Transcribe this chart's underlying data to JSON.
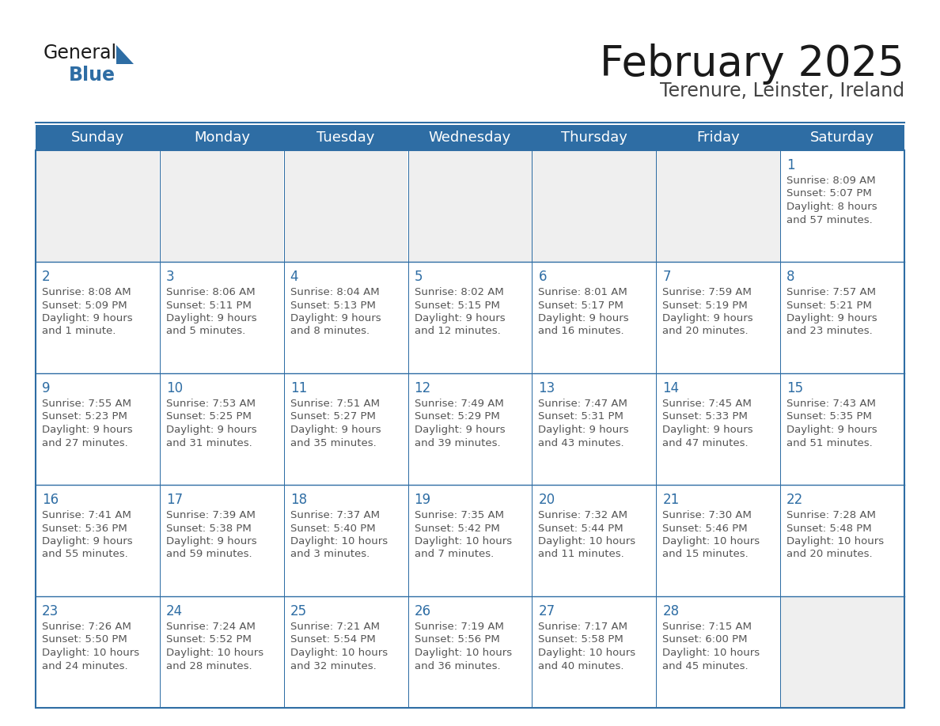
{
  "title": "February 2025",
  "subtitle": "Terenure, Leinster, Ireland",
  "header_color": "#2E6DA4",
  "header_text_color": "#FFFFFF",
  "cell_bg_color": "#FFFFFF",
  "empty_cell_bg": "#EFEFEF",
  "grid_line_color": "#2E6DA4",
  "day_number_color": "#2E6DA4",
  "cell_text_color": "#555555",
  "days_of_week": [
    "Sunday",
    "Monday",
    "Tuesday",
    "Wednesday",
    "Thursday",
    "Friday",
    "Saturday"
  ],
  "weeks": [
    [
      {
        "day": "",
        "info": ""
      },
      {
        "day": "",
        "info": ""
      },
      {
        "day": "",
        "info": ""
      },
      {
        "day": "",
        "info": ""
      },
      {
        "day": "",
        "info": ""
      },
      {
        "day": "",
        "info": ""
      },
      {
        "day": "1",
        "info": "Sunrise: 8:09 AM\nSunset: 5:07 PM\nDaylight: 8 hours\nand 57 minutes."
      }
    ],
    [
      {
        "day": "2",
        "info": "Sunrise: 8:08 AM\nSunset: 5:09 PM\nDaylight: 9 hours\nand 1 minute."
      },
      {
        "day": "3",
        "info": "Sunrise: 8:06 AM\nSunset: 5:11 PM\nDaylight: 9 hours\nand 5 minutes."
      },
      {
        "day": "4",
        "info": "Sunrise: 8:04 AM\nSunset: 5:13 PM\nDaylight: 9 hours\nand 8 minutes."
      },
      {
        "day": "5",
        "info": "Sunrise: 8:02 AM\nSunset: 5:15 PM\nDaylight: 9 hours\nand 12 minutes."
      },
      {
        "day": "6",
        "info": "Sunrise: 8:01 AM\nSunset: 5:17 PM\nDaylight: 9 hours\nand 16 minutes."
      },
      {
        "day": "7",
        "info": "Sunrise: 7:59 AM\nSunset: 5:19 PM\nDaylight: 9 hours\nand 20 minutes."
      },
      {
        "day": "8",
        "info": "Sunrise: 7:57 AM\nSunset: 5:21 PM\nDaylight: 9 hours\nand 23 minutes."
      }
    ],
    [
      {
        "day": "9",
        "info": "Sunrise: 7:55 AM\nSunset: 5:23 PM\nDaylight: 9 hours\nand 27 minutes."
      },
      {
        "day": "10",
        "info": "Sunrise: 7:53 AM\nSunset: 5:25 PM\nDaylight: 9 hours\nand 31 minutes."
      },
      {
        "day": "11",
        "info": "Sunrise: 7:51 AM\nSunset: 5:27 PM\nDaylight: 9 hours\nand 35 minutes."
      },
      {
        "day": "12",
        "info": "Sunrise: 7:49 AM\nSunset: 5:29 PM\nDaylight: 9 hours\nand 39 minutes."
      },
      {
        "day": "13",
        "info": "Sunrise: 7:47 AM\nSunset: 5:31 PM\nDaylight: 9 hours\nand 43 minutes."
      },
      {
        "day": "14",
        "info": "Sunrise: 7:45 AM\nSunset: 5:33 PM\nDaylight: 9 hours\nand 47 minutes."
      },
      {
        "day": "15",
        "info": "Sunrise: 7:43 AM\nSunset: 5:35 PM\nDaylight: 9 hours\nand 51 minutes."
      }
    ],
    [
      {
        "day": "16",
        "info": "Sunrise: 7:41 AM\nSunset: 5:36 PM\nDaylight: 9 hours\nand 55 minutes."
      },
      {
        "day": "17",
        "info": "Sunrise: 7:39 AM\nSunset: 5:38 PM\nDaylight: 9 hours\nand 59 minutes."
      },
      {
        "day": "18",
        "info": "Sunrise: 7:37 AM\nSunset: 5:40 PM\nDaylight: 10 hours\nand 3 minutes."
      },
      {
        "day": "19",
        "info": "Sunrise: 7:35 AM\nSunset: 5:42 PM\nDaylight: 10 hours\nand 7 minutes."
      },
      {
        "day": "20",
        "info": "Sunrise: 7:32 AM\nSunset: 5:44 PM\nDaylight: 10 hours\nand 11 minutes."
      },
      {
        "day": "21",
        "info": "Sunrise: 7:30 AM\nSunset: 5:46 PM\nDaylight: 10 hours\nand 15 minutes."
      },
      {
        "day": "22",
        "info": "Sunrise: 7:28 AM\nSunset: 5:48 PM\nDaylight: 10 hours\nand 20 minutes."
      }
    ],
    [
      {
        "day": "23",
        "info": "Sunrise: 7:26 AM\nSunset: 5:50 PM\nDaylight: 10 hours\nand 24 minutes."
      },
      {
        "day": "24",
        "info": "Sunrise: 7:24 AM\nSunset: 5:52 PM\nDaylight: 10 hours\nand 28 minutes."
      },
      {
        "day": "25",
        "info": "Sunrise: 7:21 AM\nSunset: 5:54 PM\nDaylight: 10 hours\nand 32 minutes."
      },
      {
        "day": "26",
        "info": "Sunrise: 7:19 AM\nSunset: 5:56 PM\nDaylight: 10 hours\nand 36 minutes."
      },
      {
        "day": "27",
        "info": "Sunrise: 7:17 AM\nSunset: 5:58 PM\nDaylight: 10 hours\nand 40 minutes."
      },
      {
        "day": "28",
        "info": "Sunrise: 7:15 AM\nSunset: 6:00 PM\nDaylight: 10 hours\nand 45 minutes."
      },
      {
        "day": "",
        "info": ""
      }
    ]
  ],
  "title_fontsize": 38,
  "subtitle_fontsize": 17,
  "header_fontsize": 13,
  "day_number_fontsize": 12,
  "cell_info_fontsize": 9.5,
  "logo_general_fontsize": 17,
  "logo_blue_fontsize": 17
}
